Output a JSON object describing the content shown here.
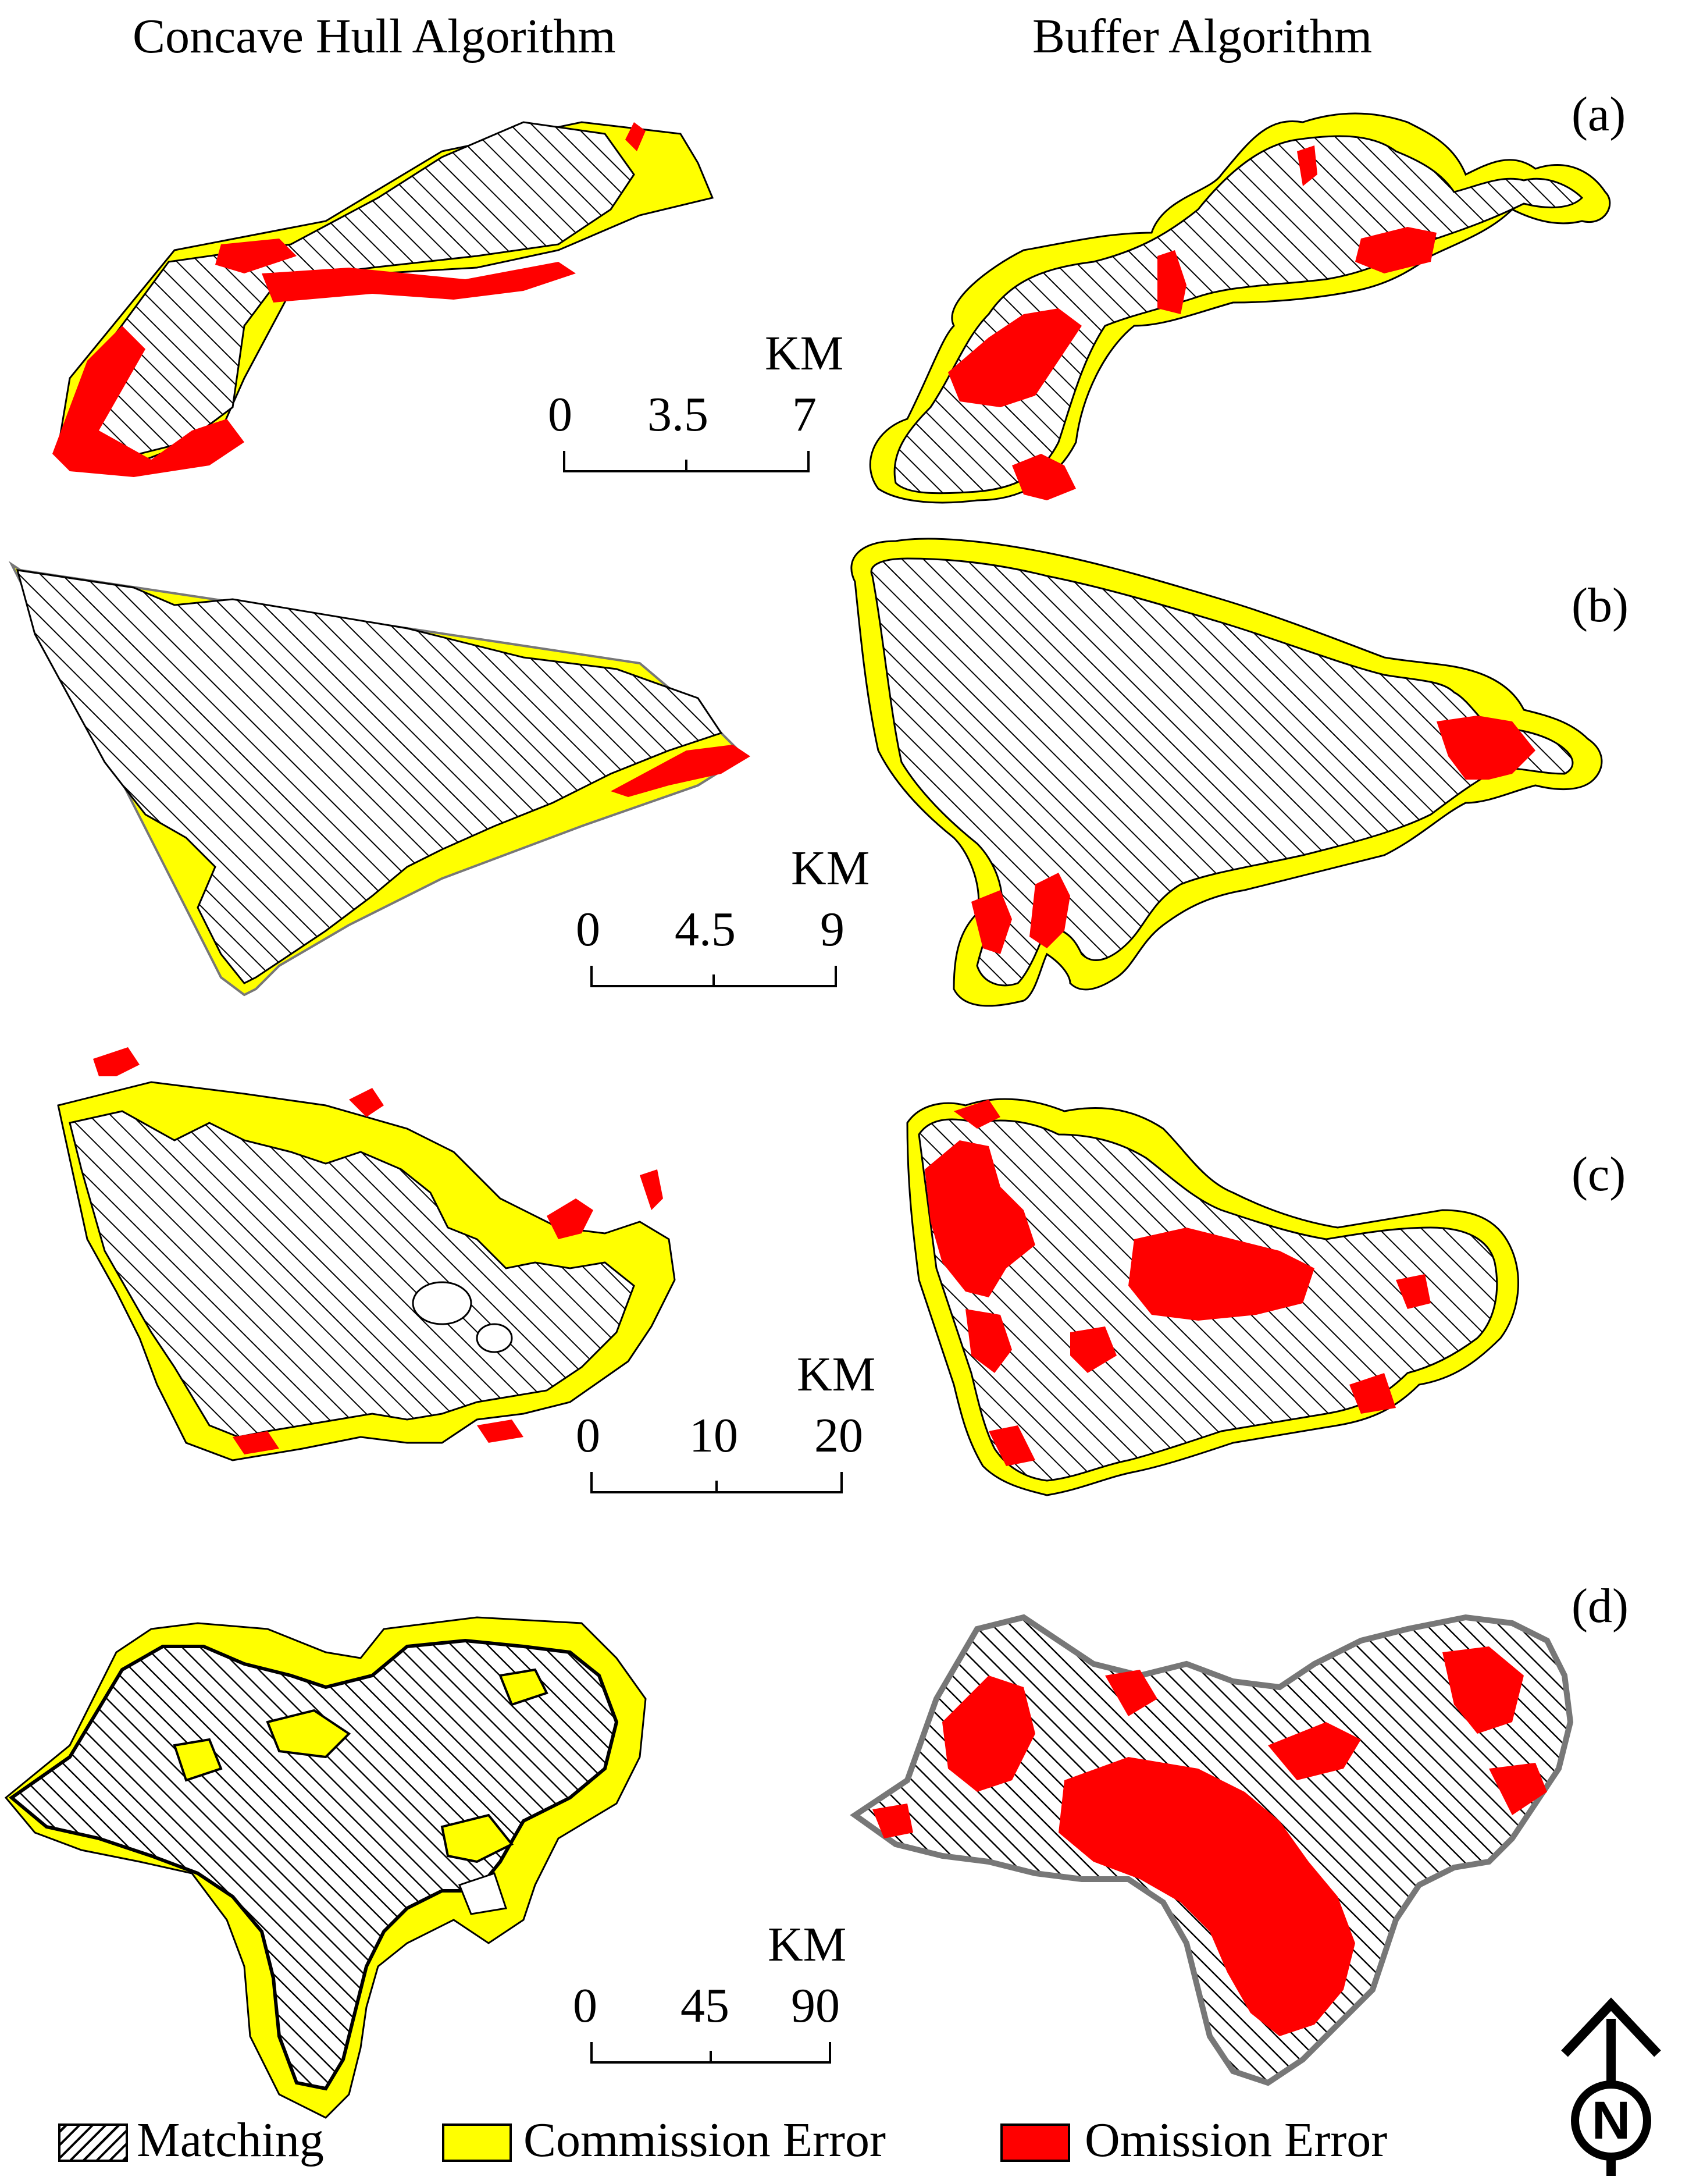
{
  "columns": [
    "Concave Hull Algorithm",
    "Buffer Algorithm"
  ],
  "panels": [
    {
      "label": "(a)",
      "scalebar": {
        "unit": "KM",
        "ticks": [
          "0",
          "3.5",
          "7"
        ]
      }
    },
    {
      "label": "(b)",
      "scalebar": {
        "unit": "KM",
        "ticks": [
          "0",
          "4.5",
          "9"
        ]
      }
    },
    {
      "label": "(c)",
      "scalebar": {
        "unit": "KM",
        "ticks": [
          "0",
          "10",
          "20"
        ]
      }
    },
    {
      "label": "(d)",
      "scalebar": {
        "unit": "KM",
        "ticks": [
          "0",
          "45",
          "90"
        ]
      }
    }
  ],
  "legend": [
    {
      "label": "Matching",
      "pattern": "hatch"
    },
    {
      "label": "Commission Error",
      "color": "#ffff00"
    },
    {
      "label": "Omission Error",
      "color": "#ff0000"
    }
  ],
  "north_arrow": {
    "letter": "N"
  },
  "colors": {
    "matching": "#ffffff",
    "commission": "#ffff00",
    "omission": "#ff0000",
    "outline": "#000000"
  }
}
